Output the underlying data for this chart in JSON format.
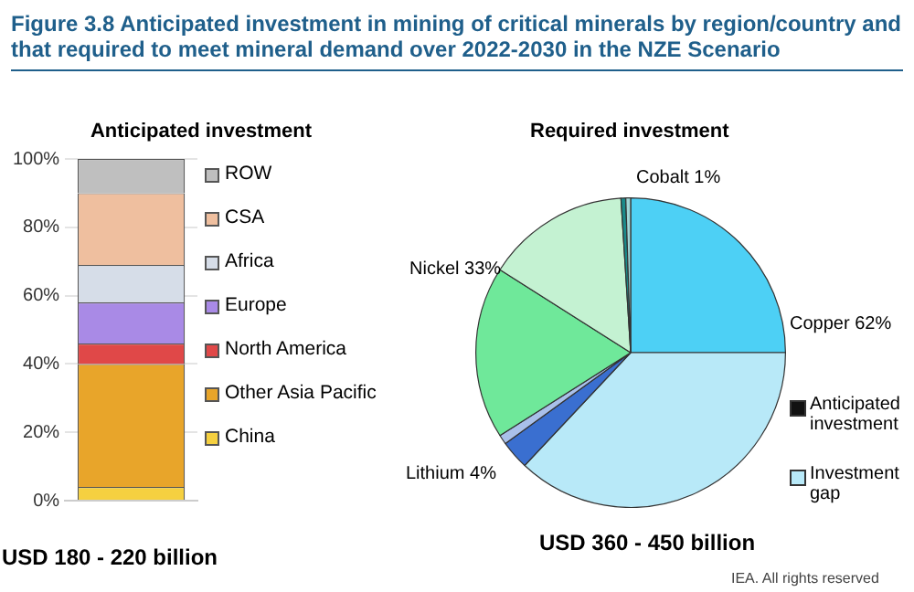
{
  "chart_data": [
    {
      "type": "bar",
      "title": "Figure 3.8   Anticipated investment in mining of critical minerals by region/country and that required to meet mineral demand over 2022-2030 in the NZE Scenario",
      "subtitle": "Anticipated investment",
      "xlabel": "USD 180 - 220 billion",
      "categories": [
        null
      ],
      "stacked": true,
      "series": [
        {
          "name": "China",
          "color": "#f5d040",
          "values": [
            4
          ]
        },
        {
          "name": "Other Asia Pacific",
          "color": "#e8a52a",
          "values": [
            36
          ]
        },
        {
          "name": "North America",
          "color": "#e04848",
          "values": [
            6
          ]
        },
        {
          "name": "Europe",
          "color": "#a98ae6",
          "values": [
            12
          ]
        },
        {
          "name": "Africa",
          "color": "#d6dde8",
          "values": [
            11
          ]
        },
        {
          "name": "CSA",
          "color": "#efbf9f",
          "values": [
            21
          ]
        },
        {
          "name": "ROW",
          "color": "#bfbfbf",
          "values": [
            10
          ]
        }
      ],
      "ylim": [
        0,
        100
      ],
      "yticks": [
        {
          "value": 0,
          "label": "0%"
        },
        {
          "value": 20,
          "label": "20%"
        },
        {
          "value": 40,
          "label": "40%"
        },
        {
          "value": 60,
          "label": "60%"
        },
        {
          "value": 80,
          "label": "80%"
        },
        {
          "value": 100,
          "label": "100%"
        }
      ],
      "grid": "y",
      "legend": "right",
      "tick_labels": "y"
    },
    {
      "type": "pie",
      "title": "Required investment",
      "categories": [
        null,
        null,
        null,
        null,
        null,
        null,
        null,
        null
      ],
      "values": [
        25,
        37,
        3,
        1,
        18,
        15,
        0.5,
        0.5
      ],
      "colors": [
        "#4dd0f5",
        "#b8e9f8",
        "#3a6fd0",
        "#a9c0ea",
        "#6fe89a",
        "#c4f2d2",
        "#1a8a8a",
        "#9fd6d6"
      ],
      "annotations": [
        "Copper 62%",
        "Lithium 4%",
        "Nickel 33%",
        "Cobalt 1%",
        "Anticipated investment",
        "Investment gap",
        "USD 360 - 450 billion",
        "IEA. All rights reserved"
      ]
    }
  ]
}
